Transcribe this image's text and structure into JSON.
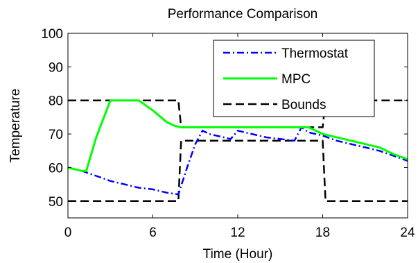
{
  "chart_data": {
    "type": "line",
    "title": "Performance Comparison",
    "xlabel": "Time (Hour)",
    "ylabel": "Temperature",
    "xlim": [
      0,
      24
    ],
    "ylim": [
      45,
      100
    ],
    "xticks": [
      0,
      6,
      12,
      18,
      24
    ],
    "yticks": [
      50,
      60,
      70,
      80,
      90,
      100
    ],
    "grid": false,
    "legend_position": "top-right",
    "series": [
      {
        "name": "Thermostat",
        "color": "#0000ff",
        "dash": "dash-dot",
        "x": [
          0,
          1,
          2,
          3,
          4,
          5,
          6,
          7,
          7.8,
          8.5,
          9,
          9.5,
          10,
          11,
          11.5,
          12,
          12.5,
          13,
          14,
          15,
          16,
          16.5,
          17,
          18,
          19,
          20,
          21,
          22,
          23,
          24
        ],
        "y": [
          60,
          59,
          57.5,
          56,
          55,
          54,
          53.5,
          52.5,
          52,
          61,
          67,
          71,
          70,
          69,
          68.5,
          71,
          70.5,
          70,
          69,
          68.5,
          68,
          72,
          70.5,
          69.5,
          68,
          67,
          66,
          65,
          63.5,
          62
        ]
      },
      {
        "name": "MPC",
        "color": "#00ff00",
        "dash": "solid",
        "x": [
          0,
          0.5,
          1,
          1.3,
          2,
          3,
          4,
          5,
          6,
          7,
          7.5,
          8,
          9,
          10,
          11,
          12,
          13,
          14,
          15,
          16,
          17,
          18,
          19,
          20,
          21,
          22,
          23,
          24
        ],
        "y": [
          60,
          59.5,
          59,
          59,
          69,
          80,
          80,
          80,
          77,
          73.5,
          72.5,
          72,
          72,
          72,
          72,
          72,
          72,
          72,
          72,
          72,
          72,
          70,
          69,
          68,
          67,
          66,
          64,
          62.5
        ]
      },
      {
        "name": "Bounds",
        "color": "#000000",
        "dash": "dashed",
        "segments": [
          {
            "x": [
              0,
              7.8,
              8,
              18,
              18.2,
              24
            ],
            "y": [
              80,
              80,
              72,
              72,
              80,
              80
            ]
          },
          {
            "x": [
              0,
              7.8,
              8,
              18,
              18.2,
              24
            ],
            "y": [
              50,
              50,
              68,
              68,
              50,
              50
            ]
          }
        ]
      }
    ]
  }
}
